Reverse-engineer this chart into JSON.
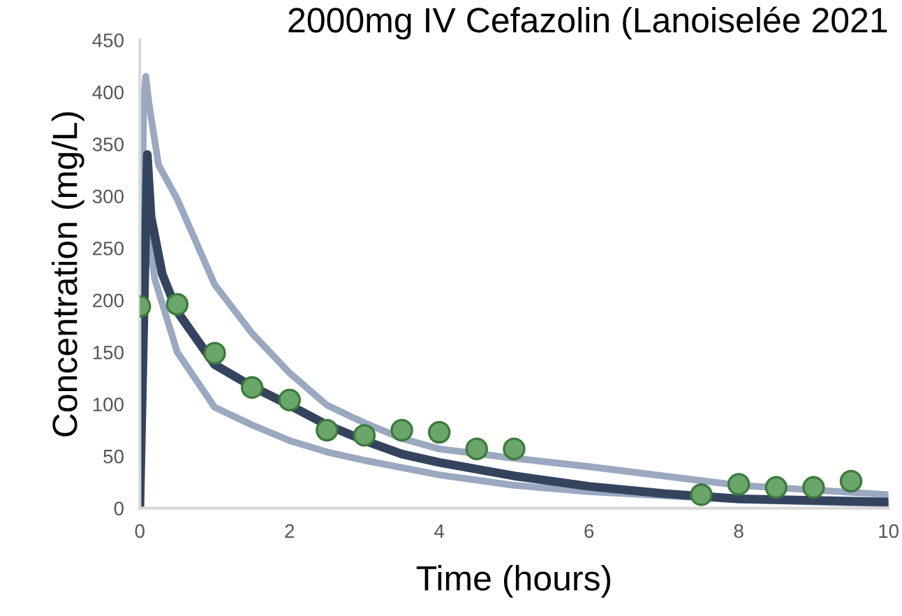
{
  "chart_data": {
    "type": "line",
    "title": "2000mg IV Cefazolin (Lanoiselée 2021",
    "xlabel": "Time (hours)",
    "ylabel": "Concentration (mg/L)",
    "xlim": [
      0,
      10
    ],
    "ylim": [
      0,
      450
    ],
    "xticks": [
      0,
      2,
      4,
      6,
      8,
      10
    ],
    "yticks": [
      0,
      50,
      100,
      150,
      200,
      250,
      300,
      350,
      400,
      450
    ],
    "grid": false,
    "legend": false,
    "series": [
      {
        "color": "#9aa8c0",
        "x": [
          0,
          0.05,
          0.08,
          0.12,
          0.25,
          0.5,
          1,
          1.5,
          2,
          2.5,
          3,
          3.5,
          4,
          5,
          6,
          8,
          10
        ],
        "values": [
          0,
          390,
          415,
          390,
          330,
          297,
          215,
          168,
          130,
          99,
          82,
          67,
          57,
          48,
          40,
          22,
          13
        ]
      },
      {
        "color": "#9aa8c0",
        "x": [
          0,
          0.05,
          0.2,
          0.5,
          1,
          1.5,
          2,
          2.5,
          3,
          4,
          5,
          6,
          8,
          10
        ],
        "values": [
          0,
          300,
          220,
          150,
          97,
          80,
          65,
          54,
          46,
          32,
          22,
          16,
          8,
          4
        ]
      },
      {
        "color": "#34445f",
        "x": [
          0,
          0.1,
          0.15,
          0.3,
          0.5,
          1,
          1.5,
          2,
          2.5,
          3,
          3.5,
          4,
          5,
          6,
          7,
          8,
          10
        ],
        "values": [
          0,
          340,
          280,
          225,
          189,
          138,
          117,
          99,
          80,
          65,
          52,
          44,
          31,
          21,
          14,
          9,
          6
        ]
      },
      {
        "type": "scatter",
        "color": "#6aa56a",
        "marker": "circle",
        "x": [
          0,
          0.5,
          1,
          1.5,
          2,
          2.5,
          3,
          3.5,
          4,
          4.5,
          5,
          7.5,
          8,
          8.5,
          9,
          9.5
        ],
        "values": [
          194,
          196,
          149,
          116,
          104,
          75,
          70,
          75,
          73,
          57,
          57,
          13,
          23,
          20,
          20,
          26
        ]
      }
    ]
  }
}
